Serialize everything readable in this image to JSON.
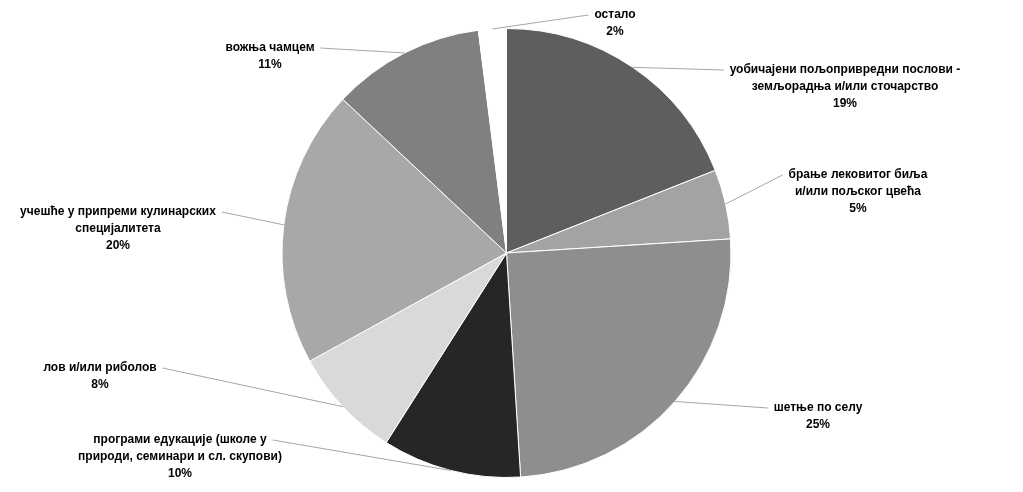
{
  "chart_data": {
    "type": "pie",
    "categories": [
      "уобичајени пољопривредни послови - земљорадња и/или сточарство",
      "брање лековитог биља и/или пољског цвећа",
      "шетње по селу",
      "програми едукације (школе у природи, семинари и сл. скупови)",
      "лов и/или риболов",
      "учешће у припреми кулинарских специјалитета",
      "вожња чамцем",
      "остало"
    ],
    "values": [
      19,
      5,
      25,
      10,
      8,
      20,
      11,
      2
    ],
    "value_labels": [
      "19%",
      "5%",
      "25%",
      "10%",
      "8%",
      "20%",
      "11%",
      "2%"
    ],
    "colors": [
      "#5e5e5e",
      "#a3a3a3",
      "#8e8e8e",
      "#262626",
      "#d9d9d9",
      "#a8a8a8",
      "#808080",
      "#ffffff"
    ],
    "legend": false
  }
}
